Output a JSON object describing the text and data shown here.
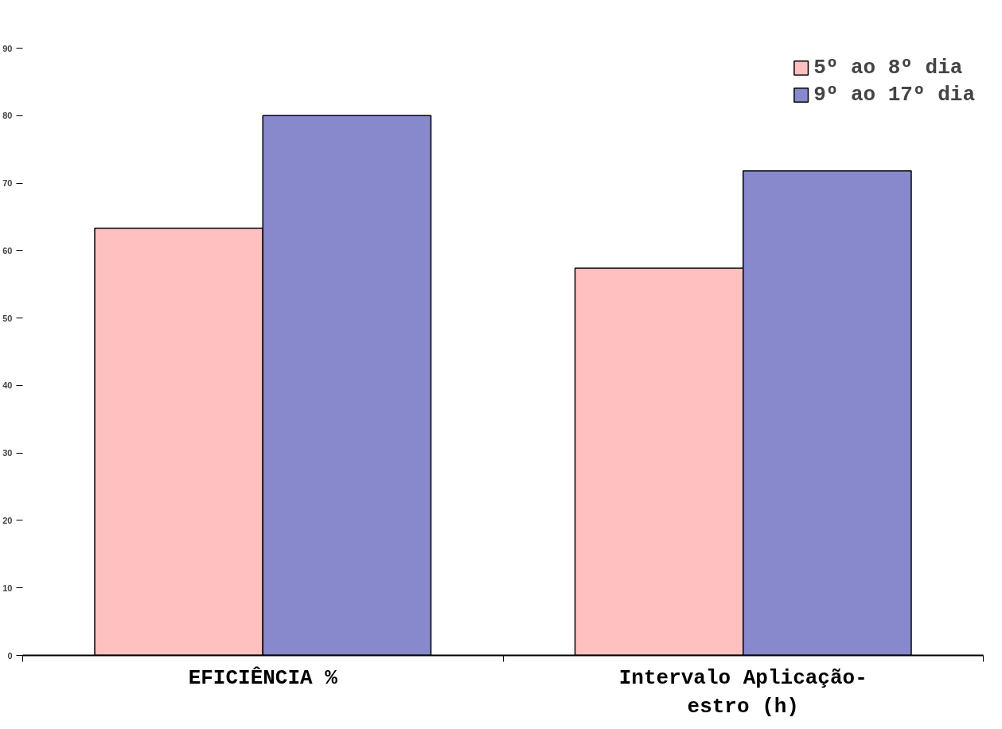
{
  "chart_data": {
    "type": "bar",
    "categories": [
      "EFICIÊNCIA %",
      "Intervalo Aplicação-estro (h)"
    ],
    "series": [
      {
        "name": "5º ao 8º dia",
        "color": "#ffc0c0",
        "values": [
          63.3,
          57.4
        ]
      },
      {
        "name": "9º ao 17º dia",
        "color": "#8888cc",
        "values": [
          80,
          71.8
        ]
      }
    ],
    "ylim": [
      0,
      90
    ],
    "yticks": [
      0,
      10,
      20,
      30,
      40,
      50,
      60,
      70,
      80,
      90
    ],
    "grid": false,
    "legend": "top right"
  }
}
